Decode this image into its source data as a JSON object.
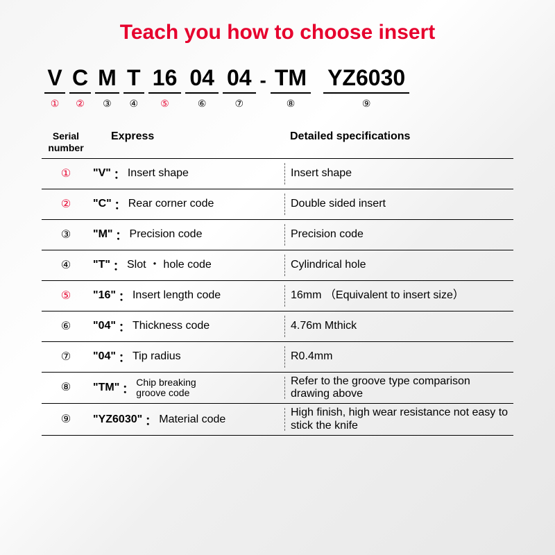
{
  "colors": {
    "accent": "#e6002d",
    "text": "#000000",
    "border": "#000000",
    "divider": "#666666",
    "bg_gradient_start": "#f5f5f5",
    "bg_gradient_end": "#e8e8e8"
  },
  "title": "Teach you how to choose insert",
  "code_segments": [
    {
      "letter": "V",
      "num": "①",
      "num_red": true,
      "wide": false
    },
    {
      "letter": "C",
      "num": "②",
      "num_red": true,
      "wide": false
    },
    {
      "letter": "M",
      "num": "③",
      "num_red": false,
      "wide": false
    },
    {
      "letter": "T",
      "num": "④",
      "num_red": false,
      "wide": false
    },
    {
      "letter": "16",
      "num": "⑤",
      "num_red": true,
      "wide": true
    },
    {
      "letter": "04",
      "num": "⑥",
      "num_red": false,
      "wide": true
    },
    {
      "letter": "04",
      "num": "⑦",
      "num_red": false,
      "wide": true
    },
    {
      "dash": "-"
    },
    {
      "letter": "TM",
      "num": "⑧",
      "num_red": false,
      "wide": true
    },
    {
      "gap": true
    },
    {
      "letter": "YZ6030",
      "num": "⑨",
      "num_red": false,
      "wide": true
    }
  ],
  "table": {
    "headers": {
      "serial": "Serial\nnumber",
      "express": "Express",
      "detail": "Detailed specifications"
    },
    "rows": [
      {
        "num": "①",
        "num_red": true,
        "code": "\"V\"",
        "label": "Insert shape",
        "detail": "Insert shape",
        "label_small": false
      },
      {
        "num": "②",
        "num_red": true,
        "code": "\"C\"",
        "label": "Rear corner code",
        "detail": "Double sided insert",
        "label_small": false
      },
      {
        "num": "③",
        "num_red": false,
        "code": "\"M\"",
        "label": "Precision code",
        "detail": "Precision code",
        "label_small": false
      },
      {
        "num": "④",
        "num_red": false,
        "code": "\"T\"",
        "label": "Slot ・ hole code",
        "detail": "Cylindrical hole",
        "label_small": false
      },
      {
        "num": "⑤",
        "num_red": true,
        "code": "\"16\"",
        "label": "Insert length code",
        "detail": "16mm （Equivalent to insert size）",
        "label_small": false
      },
      {
        "num": "⑥",
        "num_red": false,
        "code": "\"04\"",
        "label": "Thickness code",
        "detail": "4.76m  Mthick",
        "label_small": false
      },
      {
        "num": "⑦",
        "num_red": false,
        "code": "\"04\"",
        "label": "Tip radius",
        "detail": "R0.4mm",
        "label_small": false
      },
      {
        "num": "⑧",
        "num_red": false,
        "code": "\"TM\"",
        "label": "Chip breaking\ngroove code",
        "detail": "Refer to the groove type comparison drawing above",
        "label_small": true
      },
      {
        "num": "⑨",
        "num_red": false,
        "code": "\"YZ6030\"",
        "label": "Material code",
        "detail": "High finish, high wear resistance not easy to stick the knife",
        "label_small": false
      }
    ]
  }
}
